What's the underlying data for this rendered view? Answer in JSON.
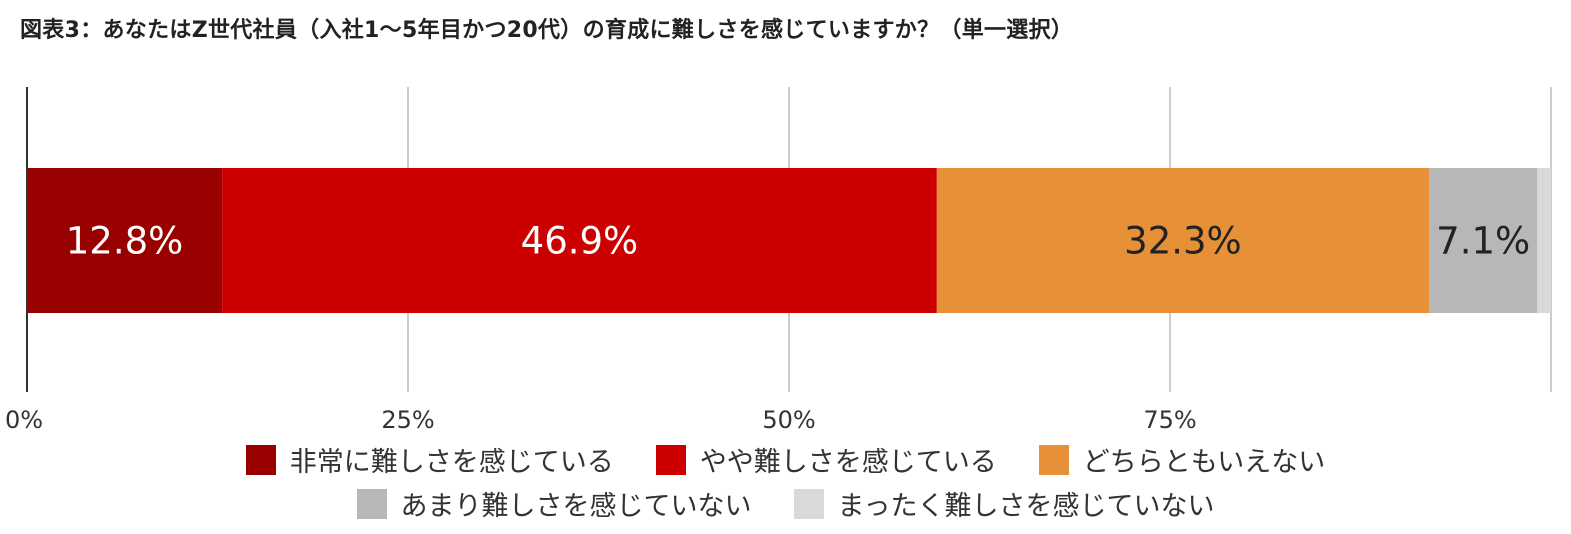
{
  "chart_data": {
    "type": "bar",
    "orientation": "horizontal",
    "stacked": true,
    "title": "図表3：あなたはZ世代社員（入社1〜5年目かつ20代）の育成に難しさを感じていますか？（単一選択）",
    "xlim": [
      0,
      100
    ],
    "ticks": [
      "0%",
      "25%",
      "50%",
      "75%"
    ],
    "tick_values": [
      0,
      25,
      50,
      75
    ],
    "grid": true,
    "legend_position": "bottom",
    "series": [
      {
        "name": "非常に難しさを感じている",
        "value": 12.8,
        "label": "12.8%",
        "color": "#990000",
        "label_color": "#ffffff"
      },
      {
        "name": "やや難しさを感じている",
        "value": 46.9,
        "label": "46.9%",
        "color": "#cc0000",
        "label_color": "#ffffff"
      },
      {
        "name": "どちらともいえない",
        "value": 32.3,
        "label": "32.3%",
        "color": "#e69138",
        "label_color": "#222222"
      },
      {
        "name": "あまり難しさを感じていない",
        "value": 7.1,
        "label": "7.1%",
        "color": "#b7b7b7",
        "label_color": "#222222"
      },
      {
        "name": "まったく難しさを感じていない",
        "value": 0.9,
        "label": "",
        "color": "#d9d9d9",
        "label_color": "#222222"
      }
    ]
  }
}
